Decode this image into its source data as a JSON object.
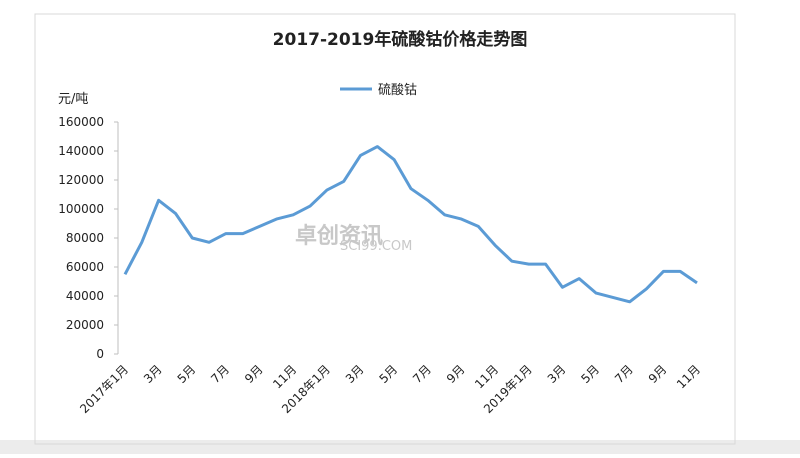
{
  "chart_data": {
    "type": "line",
    "title": "2017-2019年硫酸钴价格走势图",
    "y_label": "元/吨",
    "watermark": [
      "卓创资讯",
      "SCI99.COM"
    ],
    "categories": [
      "2017年1月",
      null,
      "3月",
      null,
      "5月",
      null,
      "7月",
      null,
      "9月",
      null,
      "11月",
      null,
      "2018年1月",
      null,
      "3月",
      null,
      "5月",
      null,
      "7月",
      null,
      "9月",
      null,
      "11月",
      null,
      "2019年1月",
      null,
      "3月",
      null,
      "5月",
      null,
      "7月",
      null,
      "9月",
      null,
      "11月"
    ],
    "series": [
      {
        "name": "硫酸钴",
        "color": "#5b9bd5",
        "values": [
          55000,
          77000,
          106000,
          97000,
          80000,
          77000,
          83000,
          83000,
          88000,
          93000,
          96000,
          102000,
          113000,
          119000,
          137000,
          143000,
          134000,
          114000,
          106000,
          96000,
          93000,
          88000,
          75000,
          64000,
          62000,
          62000,
          46000,
          52000,
          42000,
          39000,
          36000,
          45000,
          57000,
          57000,
          49000
        ]
      }
    ],
    "ylim": [
      0,
      160000
    ],
    "yticks": [
      0,
      20000,
      40000,
      60000,
      80000,
      100000,
      120000,
      140000,
      160000
    ],
    "grid": false,
    "legend": "top"
  }
}
